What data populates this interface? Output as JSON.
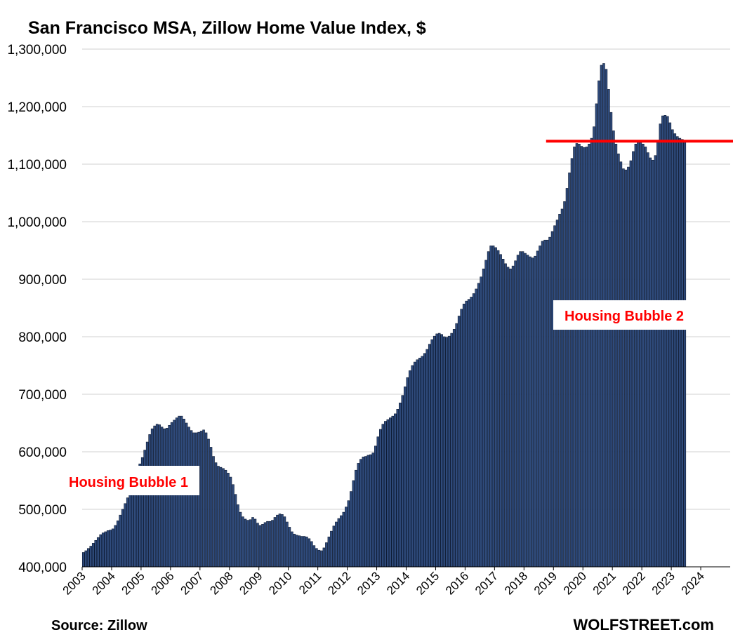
{
  "chart_data": {
    "type": "bar",
    "title": "San Francisco MSA, Zillow Home Value Index, $",
    "xlabel": "",
    "ylabel": "",
    "ylim": [
      400000,
      1300000
    ],
    "yticks": [
      400000,
      500000,
      600000,
      700000,
      800000,
      900000,
      1000000,
      1100000,
      1200000,
      1300000
    ],
    "ytick_labels": [
      "400,000",
      "500,000",
      "600,000",
      "700,000",
      "800,000",
      "900,000",
      "1,000,000",
      "1,100,000",
      "1,200,000",
      "1,300,000"
    ],
    "x_start": "2003-01",
    "x_frequency": "monthly",
    "year_labels": [
      "2003",
      "2004",
      "2005",
      "2006",
      "2007",
      "2008",
      "2009",
      "2010",
      "2011",
      "2012",
      "2013",
      "2014",
      "2015",
      "2016",
      "2017",
      "2018",
      "2019",
      "2020",
      "2021",
      "2022",
      "2023",
      "2024"
    ],
    "grid": true,
    "legend": "none",
    "bar_color": "#2f4b7c",
    "values": [
      425000,
      428000,
      432000,
      436000,
      441000,
      446000,
      451000,
      456000,
      459000,
      461000,
      463000,
      464000,
      466000,
      472000,
      480000,
      490000,
      500000,
      510000,
      520000,
      531000,
      543000,
      555000,
      567000,
      579000,
      590000,
      603000,
      617000,
      630000,
      640000,
      645000,
      648000,
      647000,
      643000,
      640000,
      641000,
      646000,
      651000,
      655000,
      659000,
      662000,
      662000,
      657000,
      650000,
      643000,
      637000,
      633000,
      633000,
      634000,
      636000,
      638000,
      633000,
      622000,
      608000,
      592000,
      581000,
      575000,
      573000,
      571000,
      568000,
      563000,
      556000,
      543000,
      526000,
      508000,
      495000,
      487000,
      483000,
      481000,
      482000,
      486000,
      483000,
      476000,
      472000,
      474000,
      477000,
      479000,
      479000,
      481000,
      486000,
      490000,
      492000,
      491000,
      487000,
      478000,
      469000,
      461000,
      457000,
      455000,
      454000,
      453000,
      453000,
      452000,
      449000,
      444000,
      437000,
      432000,
      429000,
      428000,
      433000,
      442000,
      452000,
      462000,
      471000,
      478000,
      484000,
      489000,
      495000,
      504000,
      515000,
      531000,
      550000,
      568000,
      580000,
      587000,
      591000,
      592000,
      594000,
      595000,
      598000,
      610000,
      626000,
      639000,
      648000,
      653000,
      656000,
      659000,
      662000,
      666000,
      674000,
      685000,
      698000,
      713000,
      729000,
      741000,
      750000,
      756000,
      760000,
      763000,
      766000,
      771000,
      778000,
      787000,
      795000,
      801000,
      805000,
      806000,
      804000,
      800000,
      799000,
      801000,
      806000,
      813000,
      823000,
      836000,
      848000,
      857000,
      862000,
      865000,
      869000,
      875000,
      883000,
      893000,
      904000,
      918000,
      933000,
      948000,
      958000,
      958000,
      955000,
      950000,
      943000,
      935000,
      927000,
      921000,
      918000,
      923000,
      932000,
      942000,
      948000,
      948000,
      945000,
      942000,
      939000,
      937000,
      940000,
      949000,
      958000,
      966000,
      968000,
      968000,
      973000,
      983000,
      993000,
      1003000,
      1013000,
      1022000,
      1035000,
      1058000,
      1085000,
      1110000,
      1130000,
      1136000,
      1135000,
      1131000,
      1129000,
      1130000,
      1135000,
      1145000,
      1165000,
      1205000,
      1245000,
      1272000,
      1275000,
      1265000,
      1230000,
      1190000,
      1158000,
      1135000,
      1118000,
      1104000,
      1092000,
      1090000,
      1095000,
      1106000,
      1122000,
      1135000,
      1140000,
      1138000,
      1135000,
      1130000,
      1120000,
      1111000,
      1107000,
      1115000,
      1138000,
      1170000,
      1184000,
      1185000,
      1183000,
      1172000,
      1160000,
      1153000,
      1148000,
      1145000,
      1143000,
      1140000
    ],
    "reference_line": {
      "value": 1140000,
      "start": "2018-10",
      "color": "#ff0000"
    },
    "annotations": [
      {
        "text": "Housing Bubble 1",
        "color": "#ff0000"
      },
      {
        "text": "Housing Bubble 2",
        "color": "#ff0000"
      }
    ]
  },
  "footer": {
    "source": "Source: Zillow",
    "brand": "WOLFSTREET.com"
  }
}
